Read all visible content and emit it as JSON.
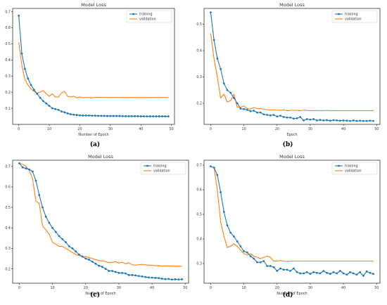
{
  "colors": {
    "training": "#1f77b4",
    "validation": "#ff7f0e",
    "axis": "#333333"
  },
  "chart_data": [
    {
      "type": "line",
      "caption": "(a)",
      "title": "Model Loss",
      "xlabel": "Number of Epoch",
      "ylabel": "",
      "xlim": [
        -2,
        51
      ],
      "ylim": [
        0.0,
        0.72
      ],
      "xticks": [
        0,
        10,
        20,
        30,
        40,
        50
      ],
      "yticks": [
        0.1,
        0.2,
        0.3,
        0.4,
        0.5,
        0.6,
        0.7
      ],
      "legend": "top-right",
      "x": [
        0,
        1,
        2,
        3,
        4,
        5,
        6,
        7,
        8,
        9,
        10,
        11,
        12,
        13,
        14,
        15,
        16,
        17,
        18,
        19,
        20,
        21,
        22,
        23,
        24,
        25,
        26,
        27,
        28,
        29,
        30,
        31,
        32,
        33,
        34,
        35,
        36,
        37,
        38,
        39,
        40,
        41,
        42,
        43,
        44,
        45,
        46,
        47,
        48,
        49
      ],
      "series": [
        {
          "name": "training",
          "color": "#1f77b4",
          "marker": true,
          "values": [
            0.675,
            0.44,
            0.345,
            0.285,
            0.245,
            0.215,
            0.19,
            0.165,
            0.145,
            0.13,
            0.115,
            0.1,
            0.095,
            0.09,
            0.08,
            0.075,
            0.068,
            0.063,
            0.06,
            0.058,
            0.056,
            0.055,
            0.055,
            0.055,
            0.054,
            0.054,
            0.053,
            0.053,
            0.053,
            0.052,
            0.052,
            0.052,
            0.052,
            0.052,
            0.051,
            0.051,
            0.051,
            0.051,
            0.051,
            0.051,
            0.05,
            0.05,
            0.05,
            0.05,
            0.05,
            0.05,
            0.05,
            0.05,
            0.05,
            0.05
          ]
        },
        {
          "name": "validation",
          "color": "#ff7f0e",
          "marker": false,
          "values": [
            0.51,
            0.37,
            0.28,
            0.245,
            0.22,
            0.205,
            0.195,
            0.2,
            0.21,
            0.19,
            0.175,
            0.19,
            0.17,
            0.17,
            0.195,
            0.205,
            0.175,
            0.17,
            0.175,
            0.165,
            0.17,
            0.165,
            0.168,
            0.166,
            0.165,
            0.168,
            0.168,
            0.167,
            0.168,
            0.167,
            0.166,
            0.167,
            0.167,
            0.167,
            0.166,
            0.167,
            0.166,
            0.167,
            0.167,
            0.166,
            0.167,
            0.166,
            0.167,
            0.166,
            0.167,
            0.167,
            0.166,
            0.167,
            0.167,
            0.166
          ]
        }
      ]
    },
    {
      "type": "line",
      "caption": "(b)",
      "title": "Model Loss",
      "xlabel": "Epoch",
      "ylabel": "",
      "xlim": [
        -2,
        51
      ],
      "ylim": [
        0.12,
        0.56
      ],
      "xticks": [
        0,
        10,
        20,
        30,
        40,
        50
      ],
      "yticks": [
        0.2,
        0.3,
        0.4,
        0.5
      ],
      "legend": "top-right",
      "x": [
        0,
        1,
        2,
        3,
        4,
        5,
        6,
        7,
        8,
        9,
        10,
        11,
        12,
        13,
        14,
        15,
        16,
        17,
        18,
        19,
        20,
        21,
        22,
        23,
        24,
        25,
        26,
        27,
        28,
        29,
        30,
        31,
        32,
        33,
        34,
        35,
        36,
        37,
        38,
        39,
        40,
        41,
        42,
        43,
        44,
        45,
        46,
        47,
        48,
        49
      ],
      "series": [
        {
          "name": "training",
          "color": "#1f77b4",
          "marker": true,
          "values": [
            0.545,
            0.44,
            0.37,
            0.33,
            0.275,
            0.25,
            0.24,
            0.22,
            0.2,
            0.18,
            0.178,
            0.175,
            0.17,
            0.172,
            0.165,
            0.165,
            0.158,
            0.156,
            0.154,
            0.156,
            0.15,
            0.153,
            0.148,
            0.146,
            0.146,
            0.142,
            0.143,
            0.148,
            0.135,
            0.14,
            0.138,
            0.14,
            0.135,
            0.137,
            0.135,
            0.136,
            0.134,
            0.136,
            0.135,
            0.134,
            0.135,
            0.134,
            0.133,
            0.135,
            0.133,
            0.134,
            0.133,
            0.133,
            0.134,
            0.133
          ]
        },
        {
          "name": "validation",
          "color": "#ff7f0e",
          "marker": false,
          "values": [
            0.465,
            0.37,
            0.3,
            0.22,
            0.235,
            0.205,
            0.21,
            0.235,
            0.185,
            0.185,
            0.19,
            0.18,
            0.178,
            0.184,
            0.18,
            0.18,
            0.178,
            0.176,
            0.175,
            0.176,
            0.174,
            0.173,
            0.175,
            0.172,
            0.173,
            0.174,
            0.173,
            0.172,
            0.174,
            0.173,
            0.172,
            0.172,
            0.173,
            0.172,
            0.172,
            0.173,
            0.172,
            0.172,
            0.172,
            0.172,
            0.172,
            0.172,
            0.172,
            0.172,
            0.172,
            0.172,
            0.172,
            0.172,
            0.172,
            0.172
          ]
        }
      ]
    },
    {
      "type": "line",
      "caption": "(c)",
      "title": "Model Loss",
      "xlabel": "Number of Epoch",
      "ylabel": "",
      "xlim": [
        -2,
        51
      ],
      "ylim": [
        0.13,
        0.73
      ],
      "xticks": [
        0,
        10,
        20,
        30,
        40,
        50
      ],
      "yticks": [
        0.2,
        0.3,
        0.4,
        0.5,
        0.6,
        0.7
      ],
      "legend": "top-right",
      "x": [
        0,
        1,
        2,
        3,
        4,
        5,
        6,
        7,
        8,
        9,
        10,
        11,
        12,
        13,
        14,
        15,
        16,
        17,
        18,
        19,
        20,
        21,
        22,
        23,
        24,
        25,
        26,
        27,
        28,
        29,
        30,
        31,
        32,
        33,
        34,
        35,
        36,
        37,
        38,
        39,
        40,
        41,
        42,
        43,
        44,
        45,
        46,
        47,
        48,
        49
      ],
      "series": [
        {
          "name": "training",
          "color": "#1f77b4",
          "marker": true,
          "values": [
            0.715,
            0.695,
            0.69,
            0.685,
            0.675,
            0.63,
            0.56,
            0.5,
            0.455,
            0.425,
            0.4,
            0.38,
            0.36,
            0.345,
            0.33,
            0.31,
            0.3,
            0.285,
            0.27,
            0.26,
            0.25,
            0.245,
            0.235,
            0.225,
            0.215,
            0.21,
            0.2,
            0.19,
            0.19,
            0.185,
            0.18,
            0.18,
            0.178,
            0.17,
            0.17,
            0.168,
            0.165,
            0.163,
            0.16,
            0.158,
            0.157,
            0.156,
            0.155,
            0.152,
            0.15,
            0.151,
            0.148,
            0.149,
            0.148,
            0.149
          ]
        },
        {
          "name": "validation",
          "color": "#ff7f0e",
          "marker": false,
          "values": [
            0.715,
            0.71,
            0.7,
            0.68,
            0.64,
            0.53,
            0.52,
            0.41,
            0.39,
            0.37,
            0.33,
            0.32,
            0.31,
            0.31,
            0.3,
            0.29,
            0.28,
            0.27,
            0.265,
            0.26,
            0.26,
            0.255,
            0.25,
            0.245,
            0.24,
            0.24,
            0.235,
            0.23,
            0.232,
            0.235,
            0.228,
            0.232,
            0.225,
            0.23,
            0.22,
            0.218,
            0.22,
            0.222,
            0.22,
            0.218,
            0.218,
            0.215,
            0.216,
            0.214,
            0.215,
            0.214,
            0.214,
            0.213,
            0.213,
            0.213
          ]
        }
      ]
    },
    {
      "type": "line",
      "caption": "(d)",
      "title": "Model Loss",
      "xlabel": "Number of Epoch",
      "ylabel": "",
      "xlim": [
        -2,
        51
      ],
      "ylim": [
        0.22,
        0.72
      ],
      "xticks": [
        0,
        10,
        20,
        30,
        40,
        50
      ],
      "yticks": [
        0.3,
        0.4,
        0.5,
        0.6,
        0.7
      ],
      "legend": "top-right",
      "x": [
        0,
        1,
        2,
        3,
        4,
        5,
        6,
        7,
        8,
        9,
        10,
        11,
        12,
        13,
        14,
        15,
        16,
        17,
        18,
        19,
        20,
        21,
        22,
        23,
        24,
        25,
        26,
        27,
        28,
        29,
        30,
        31,
        32,
        33,
        34,
        35,
        36,
        37,
        38,
        39,
        40,
        41,
        42,
        43,
        44,
        45,
        46,
        47,
        48,
        49
      ],
      "series": [
        {
          "name": "training",
          "color": "#1f77b4",
          "marker": true,
          "values": [
            0.695,
            0.69,
            0.66,
            0.59,
            0.51,
            0.455,
            0.425,
            0.41,
            0.39,
            0.37,
            0.35,
            0.345,
            0.33,
            0.32,
            0.305,
            0.305,
            0.31,
            0.29,
            0.29,
            0.285,
            0.27,
            0.28,
            0.275,
            0.275,
            0.27,
            0.28,
            0.265,
            0.26,
            0.26,
            0.265,
            0.258,
            0.265,
            0.262,
            0.26,
            0.27,
            0.262,
            0.258,
            0.265,
            0.26,
            0.27,
            0.26,
            0.255,
            0.265,
            0.26,
            0.255,
            0.265,
            0.25,
            0.268,
            0.262,
            0.258
          ]
        },
        {
          "name": "validation",
          "color": "#ff7f0e",
          "marker": false,
          "values": [
            0.695,
            0.69,
            0.6,
            0.47,
            0.41,
            0.365,
            0.37,
            0.38,
            0.37,
            0.355,
            0.34,
            0.335,
            0.34,
            0.33,
            0.325,
            0.32,
            0.325,
            0.33,
            0.325,
            0.31,
            0.31,
            0.312,
            0.31,
            0.308,
            0.31,
            0.31,
            0.31,
            0.31,
            0.31,
            0.31,
            0.31,
            0.31,
            0.31,
            0.31,
            0.31,
            0.31,
            0.31,
            0.31,
            0.31,
            0.31,
            0.31,
            0.31,
            0.31,
            0.31,
            0.31,
            0.31,
            0.31,
            0.31,
            0.31,
            0.31
          ]
        }
      ]
    }
  ]
}
